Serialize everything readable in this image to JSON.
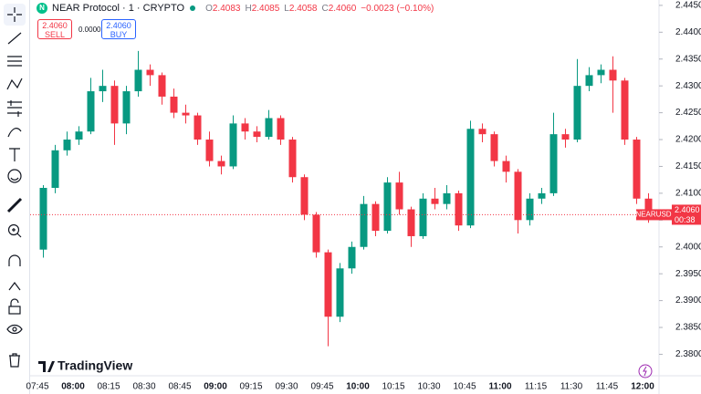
{
  "header": {
    "symbol_icon": "N",
    "symbol": "NEAR Protocol · 1 · CRYPTO",
    "o_label": "O",
    "o": "2.4083",
    "h_label": "H",
    "h": "2.4085",
    "l_label": "L",
    "l": "2.4058",
    "c_label": "C",
    "c": "2.4060",
    "change": "−0.0023 (−0.10%)"
  },
  "trade": {
    "sell_price": "2.4060",
    "sell": "SELL",
    "spread": "0.0000",
    "buy_price": "2.4060",
    "buy": "BUY"
  },
  "logo": "TradingView",
  "chart_data": {
    "type": "candlestick",
    "x": [
      "07:45",
      "07:50",
      "07:55",
      "08:00",
      "08:05",
      "08:10",
      "08:15",
      "08:20",
      "08:25",
      "08:30",
      "08:35",
      "08:40",
      "08:45",
      "08:50",
      "08:55",
      "09:00",
      "09:05",
      "09:10",
      "09:15",
      "09:20",
      "09:25",
      "09:30",
      "09:35",
      "09:40",
      "09:45",
      "09:50",
      "09:55",
      "10:00",
      "10:05",
      "10:10",
      "10:15",
      "10:20",
      "10:25",
      "10:30",
      "10:35",
      "10:40",
      "10:45",
      "10:50",
      "10:55",
      "11:00",
      "11:05",
      "11:10",
      "11:15",
      "11:20",
      "11:25",
      "11:30",
      "11:35",
      "11:40",
      "11:45",
      "11:50",
      "11:55",
      "12:00"
    ],
    "open": [
      2.3995,
      2.411,
      2.418,
      2.42,
      2.4215,
      2.429,
      2.43,
      2.423,
      2.429,
      2.433,
      2.432,
      2.428,
      2.425,
      2.4245,
      2.42,
      2.416,
      2.415,
      2.423,
      2.4215,
      2.4205,
      2.424,
      2.42,
      2.413,
      2.406,
      2.399,
      2.387,
      2.396,
      2.4,
      2.408,
      2.403,
      2.412,
      2.407,
      2.402,
      2.409,
      2.408,
      2.41,
      2.404,
      2.422,
      2.421,
      2.416,
      2.414,
      2.405,
      2.409,
      2.41,
      2.421,
      2.42,
      2.43,
      2.432,
      2.433,
      2.431,
      2.42,
      2.409
    ],
    "high": [
      2.4115,
      2.419,
      2.4215,
      2.4225,
      2.4315,
      2.433,
      2.431,
      2.43,
      2.4365,
      2.434,
      2.4325,
      2.4295,
      2.4265,
      2.425,
      2.4215,
      2.417,
      2.4245,
      2.424,
      2.4225,
      2.4255,
      2.4245,
      2.4205,
      2.4135,
      2.4065,
      2.3995,
      2.397,
      2.401,
      2.4095,
      2.4085,
      2.413,
      2.414,
      2.4075,
      2.41,
      2.411,
      2.4115,
      2.4105,
      2.4235,
      2.423,
      2.4215,
      2.417,
      2.4145,
      2.41,
      2.411,
      2.425,
      2.422,
      2.435,
      2.4335,
      2.434,
      2.4355,
      2.4315,
      2.4205,
      2.41
    ],
    "low": [
      2.398,
      2.41,
      2.417,
      2.419,
      2.421,
      2.427,
      2.419,
      2.421,
      2.428,
      2.43,
      2.4265,
      2.424,
      2.423,
      2.419,
      2.415,
      2.4135,
      2.4145,
      2.42,
      2.4195,
      2.42,
      2.419,
      2.412,
      2.405,
      2.398,
      2.3815,
      2.386,
      2.395,
      2.3995,
      2.402,
      2.4025,
      2.406,
      2.4,
      2.4015,
      2.407,
      2.407,
      2.403,
      2.4035,
      2.4195,
      2.415,
      2.412,
      2.4025,
      2.404,
      2.408,
      2.4095,
      2.4185,
      2.4195,
      2.429,
      2.4305,
      2.425,
      2.419,
      2.408,
      2.4045
    ],
    "close": [
      2.411,
      2.418,
      2.42,
      2.4215,
      2.429,
      2.43,
      2.423,
      2.429,
      2.433,
      2.432,
      2.428,
      2.425,
      2.4245,
      2.42,
      2.416,
      2.415,
      2.423,
      2.4215,
      2.4205,
      2.424,
      2.42,
      2.413,
      2.406,
      2.399,
      2.387,
      2.396,
      2.4,
      2.408,
      2.403,
      2.412,
      2.407,
      2.402,
      2.409,
      2.408,
      2.41,
      2.404,
      2.422,
      2.421,
      2.416,
      2.414,
      2.405,
      2.409,
      2.41,
      2.421,
      2.42,
      2.43,
      2.432,
      2.433,
      2.431,
      2.42,
      2.409,
      2.406
    ],
    "up_color": "#089981",
    "down_color": "#f23645",
    "symbol": "NEARUSD",
    "last_price_label": "2.4060",
    "countdown": "00:38",
    "xticks": [
      "07:45",
      "08:00",
      "08:15",
      "08:30",
      "08:45",
      "09:00",
      "09:15",
      "09:30",
      "09:45",
      "10:00",
      "10:15",
      "10:30",
      "10:45",
      "11:00",
      "11:15",
      "11:30",
      "11:45",
      "12:00"
    ],
    "ylim": [
      2.376,
      2.446
    ],
    "yticks": [
      {
        "value": 2.38,
        "label": "2.3800"
      },
      {
        "value": 2.385,
        "label": "2.3850"
      },
      {
        "value": 2.39,
        "label": "2.3900"
      },
      {
        "value": 2.395,
        "label": "2.3950"
      },
      {
        "value": 2.4,
        "label": "2.4000"
      },
      {
        "value": 2.405,
        "label": "2.4050"
      },
      {
        "value": 2.41,
        "label": "2.4100"
      },
      {
        "value": 2.415,
        "label": "2.4150"
      },
      {
        "value": 2.42,
        "label": "2.4200"
      },
      {
        "value": 2.425,
        "label": "2.4250"
      },
      {
        "value": 2.43,
        "label": "2.4300"
      },
      {
        "value": 2.435,
        "label": "2.4350"
      },
      {
        "value": 2.44,
        "label": "2.4400"
      },
      {
        "value": 2.445,
        "label": "2.4450"
      }
    ]
  }
}
